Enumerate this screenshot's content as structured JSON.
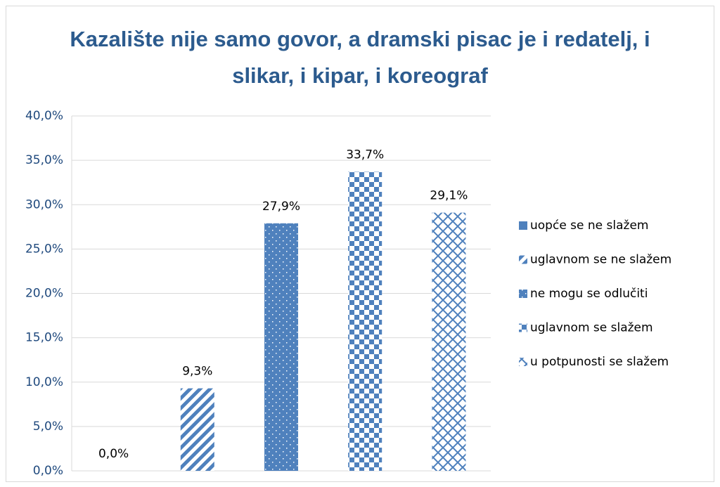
{
  "chart_data": {
    "type": "bar",
    "title": "Kazalište nije samo govor, a dramski pisac je i redatelj, i slikar, i kipar, i koreograf",
    "series": [
      {
        "name": "uopće se ne slažem",
        "color": "#4f81bd",
        "pattern": "solid",
        "values": [
          0.0
        ],
        "value_labels": [
          "0,0%"
        ]
      },
      {
        "name": "uglavnom se ne slažem",
        "color": "#4f81bd",
        "pattern": "stripes",
        "values": [
          9.3
        ],
        "value_labels": [
          "9,3%"
        ]
      },
      {
        "name": "ne mogu se odlučiti",
        "color": "#4f81bd",
        "pattern": "dots",
        "values": [
          27.9
        ],
        "value_labels": [
          "27,9%"
        ]
      },
      {
        "name": "uglavnom se slažem",
        "color": "#4f81bd",
        "pattern": "checker",
        "values": [
          33.7
        ],
        "value_labels": [
          "33,7%"
        ]
      },
      {
        "name": "u potpunosti se slažem",
        "color": "#4f81bd",
        "pattern": "lattice",
        "values": [
          29.1
        ],
        "value_labels": [
          "29,1%"
        ]
      }
    ],
    "ylim": [
      0,
      40
    ],
    "yticks": [
      {
        "value": 0,
        "label": "0,0%"
      },
      {
        "value": 5,
        "label": "5,0%"
      },
      {
        "value": 10,
        "label": "10,0%"
      },
      {
        "value": 15,
        "label": "15,0%"
      },
      {
        "value": 20,
        "label": "20,0%"
      },
      {
        "value": 25,
        "label": "25,0%"
      },
      {
        "value": 30,
        "label": "30,0%"
      },
      {
        "value": 35,
        "label": "35,0%"
      },
      {
        "value": 40,
        "label": "40,0%"
      }
    ],
    "grid": true,
    "legend": "right"
  }
}
